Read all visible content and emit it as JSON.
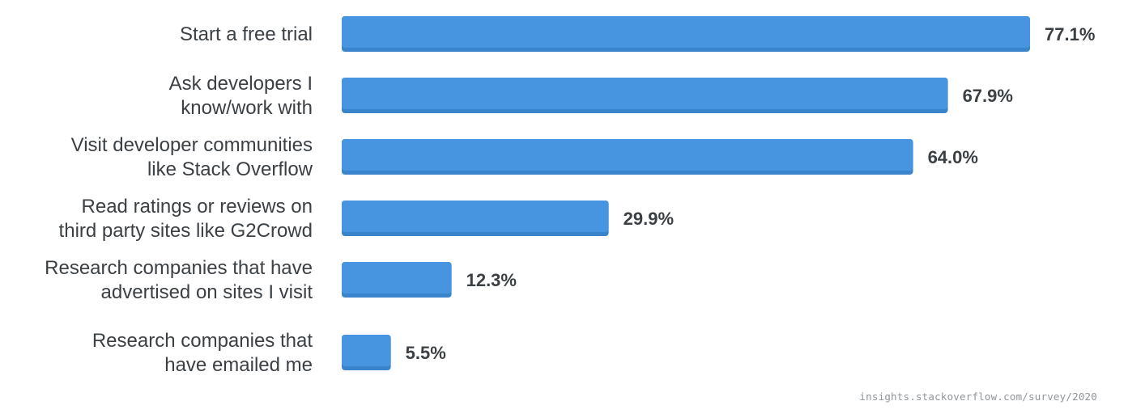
{
  "chart_data": {
    "type": "bar",
    "orientation": "horizontal",
    "categories": [
      [
        "Start a free trial"
      ],
      [
        "Ask developers I",
        "know/work with"
      ],
      [
        "Visit developer communities",
        "like Stack Overflow"
      ],
      [
        "Read ratings or reviews on",
        "third party sites like G2Crowd"
      ],
      [
        "Research companies that have",
        "advertised on sites I visit"
      ],
      [
        "Research companies that",
        "have emailed me"
      ]
    ],
    "values": [
      77.1,
      67.9,
      64.0,
      29.9,
      12.3,
      5.5
    ],
    "value_labels": [
      "77.1%",
      "67.9%",
      "64.0%",
      "29.9%",
      "12.3%",
      "5.5%"
    ],
    "xlim": [
      0,
      77.1
    ],
    "grid": false,
    "bar_color": "#4795e0",
    "bar_shadow_color": "#3a84cc",
    "text_color": "#3b4045"
  },
  "source": "insights.stackoverflow.com/survey/2020"
}
